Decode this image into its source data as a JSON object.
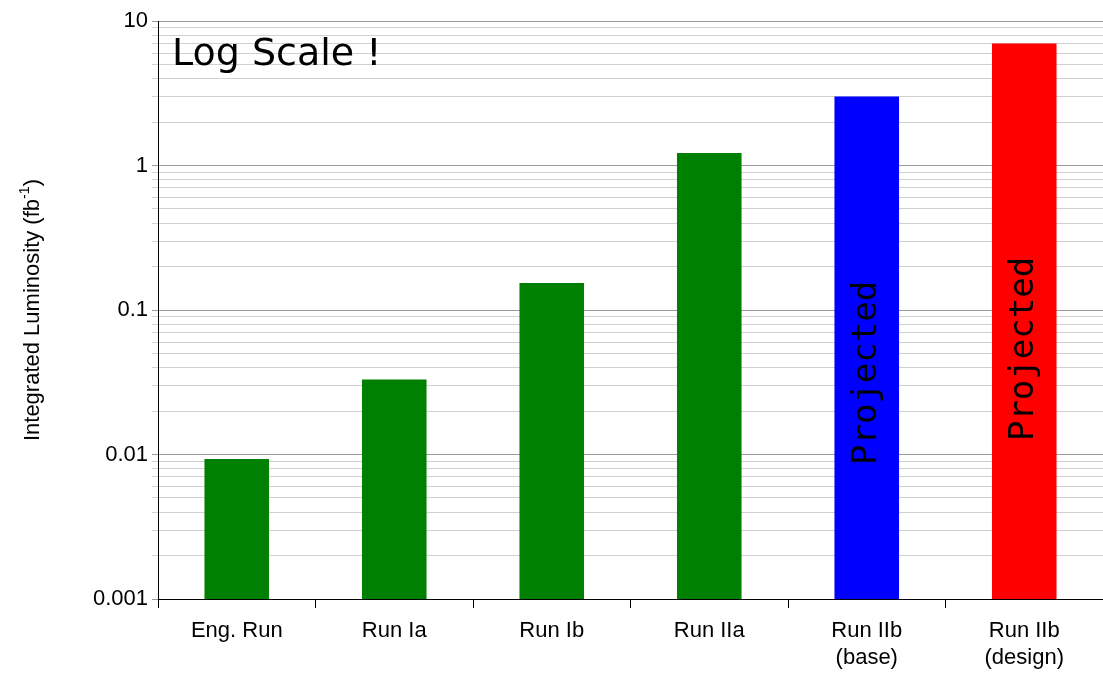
{
  "chart_data": {
    "type": "bar",
    "ylabel": "Integrated Luminosity (fb$^{-1}$)",
    "categories": [
      "Eng. Run",
      "Run Ia",
      "Run Ib",
      "Run IIa",
      "Run IIb\n(base)",
      "Run IIb\n(design)"
    ],
    "values": [
      0.0093,
      0.033,
      0.154,
      1.22,
      3,
      7
    ],
    "colors": [
      "#008000",
      "#008000",
      "#008000",
      "#008000",
      "#0000ff",
      "#ff0000"
    ],
    "log": "y",
    "ylim": [
      0.001,
      10
    ],
    "yticks": [
      0.001,
      {
        "value": 0.002,
        "label": null
      },
      {
        "value": 0.003,
        "label": null
      },
      {
        "value": 0.004,
        "label": null
      },
      {
        "value": 0.005,
        "label": null
      },
      {
        "value": 0.006,
        "label": null
      },
      {
        "value": 0.007,
        "label": null
      },
      {
        "value": 0.008,
        "label": null
      },
      {
        "value": 0.009,
        "label": null
      },
      0.01,
      {
        "value": 0.02,
        "label": null
      },
      {
        "value": 0.03,
        "label": null
      },
      {
        "value": 0.04,
        "label": null
      },
      {
        "value": 0.05,
        "label": null
      },
      {
        "value": 0.06,
        "label": null
      },
      {
        "value": 0.07,
        "label": null
      },
      {
        "value": 0.08,
        "label": null
      },
      {
        "value": 0.09,
        "label": null
      },
      0.1,
      {
        "value": 0.2,
        "label": null
      },
      {
        "value": 0.3,
        "label": null
      },
      {
        "value": 0.4,
        "label": null
      },
      {
        "value": 0.5,
        "label": null
      },
      {
        "value": 0.6,
        "label": null
      },
      {
        "value": 0.7,
        "label": null
      },
      {
        "value": 0.8,
        "label": null
      },
      {
        "value": 0.9,
        "label": null
      },
      1,
      {
        "value": 2,
        "label": null
      },
      {
        "value": 3,
        "label": null
      },
      {
        "value": 4,
        "label": null
      },
      {
        "value": 5,
        "label": null
      },
      {
        "value": 6,
        "label": null
      },
      {
        "value": 7,
        "label": null
      },
      {
        "value": 8,
        "label": null
      },
      {
        "value": 9,
        "label": null
      },
      10
    ],
    "grid": "y",
    "legend": false,
    "annotations": [
      "Log Scale !",
      "Projected",
      "Projected"
    ]
  }
}
